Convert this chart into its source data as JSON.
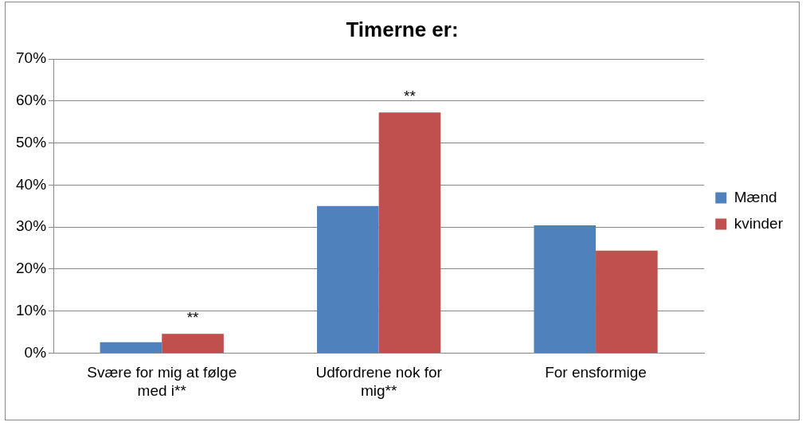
{
  "chart_data": {
    "type": "bar",
    "title": "Timerne er:",
    "categories": [
      "Svære for mig at følge med i**",
      "Udfordrene nok for mig**",
      "For ensformige"
    ],
    "series": [
      {
        "name": "Mænd",
        "color": "#4f81bd",
        "values": [
          2.6,
          35,
          30.4
        ]
      },
      {
        "name": "kvinder",
        "color": "#c0504d",
        "values": [
          4.6,
          57.3,
          24.4
        ]
      }
    ],
    "ylim": [
      0,
      70
    ],
    "yticks": [
      {
        "value": 0,
        "label": "0%"
      },
      {
        "value": 10,
        "label": "10%"
      },
      {
        "value": 20,
        "label": "20%"
      },
      {
        "value": 30,
        "label": "30%"
      },
      {
        "value": 40,
        "label": "40%"
      },
      {
        "value": 50,
        "label": "50%"
      },
      {
        "value": 60,
        "label": "60%"
      },
      {
        "value": 70,
        "label": "70%"
      }
    ],
    "grid": "y",
    "legend": "right",
    "annotations": [
      {
        "text": "**",
        "x": "Svære for mig at følge med i**",
        "y": 4.6
      },
      {
        "text": "**",
        "x": "Udfordrene nok for mig**",
        "y": 57.3
      }
    ]
  }
}
